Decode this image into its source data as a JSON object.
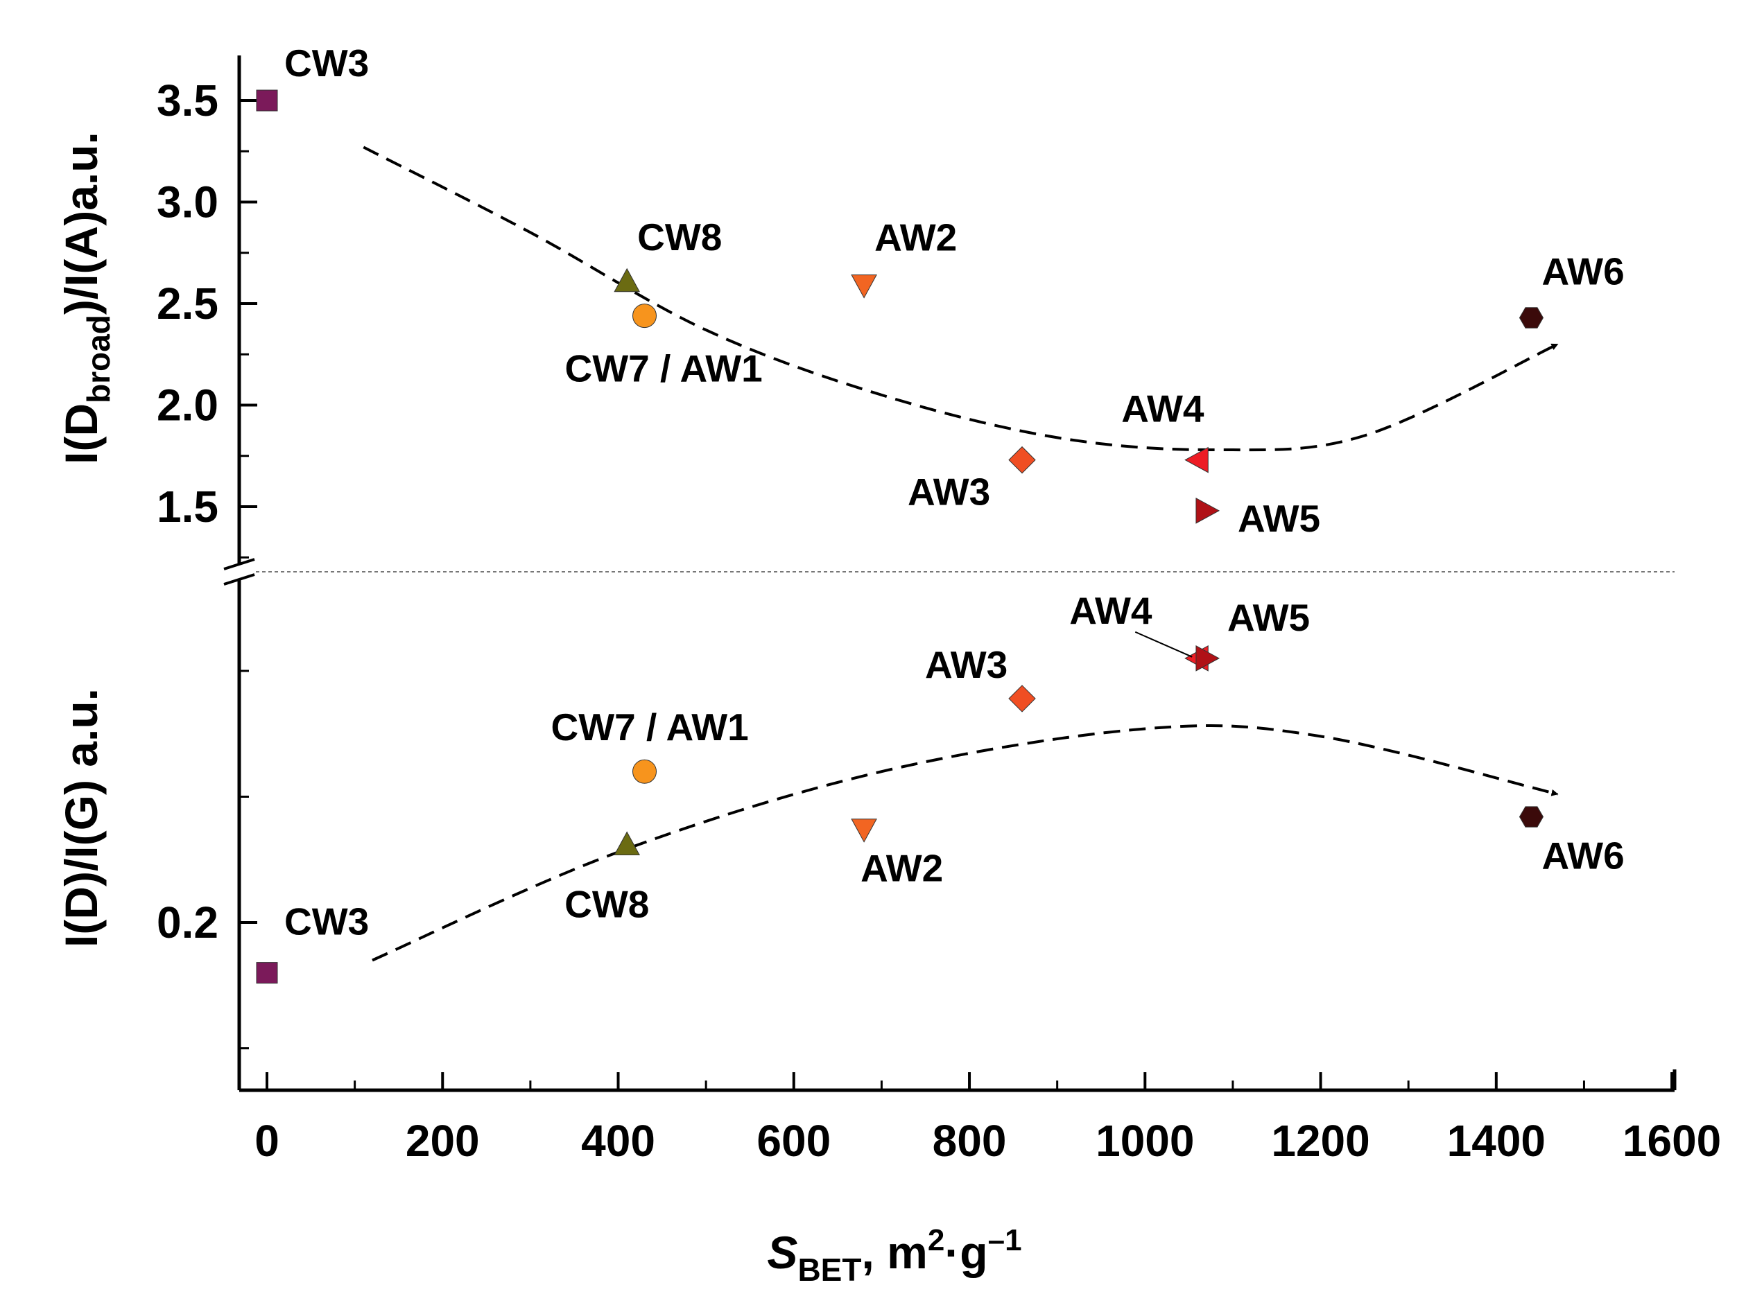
{
  "chart_data": {
    "type": "scatter",
    "xlabel": {
      "main": "S",
      "sub": "BET",
      "unit": ", m",
      "sup1": "2",
      "dot": "·",
      "g": "g",
      "sup2": "–1"
    },
    "x_ticks": [
      "0",
      "200",
      "400",
      "600",
      "800",
      "1000",
      "1200",
      "1400",
      "1600"
    ],
    "xlim": [
      -30,
      1600
    ],
    "upper_panel": {
      "ylabel": {
        "pre": "I(D",
        "sub": "broad",
        "post": ")/I(A)a.u."
      },
      "y_ticks": [
        "1.5",
        "2.0",
        "2.5",
        "3.0",
        "3.5"
      ],
      "ylim": [
        1.2,
        3.72
      ],
      "points": [
        {
          "name": "CW3",
          "x": 0,
          "y": 3.5,
          "marker": "square",
          "color": "#7b1a5a"
        },
        {
          "name": "CW8",
          "x": 410,
          "y": 2.61,
          "marker": "triangle-up",
          "color": "#6b6b12"
        },
        {
          "name": "CW7 / AW1",
          "x": 430,
          "y": 2.44,
          "marker": "circle",
          "color": "#f7941d"
        },
        {
          "name": "AW2",
          "x": 680,
          "y": 2.59,
          "marker": "triangle-down",
          "color": "#f26522"
        },
        {
          "name": "AW3",
          "x": 860,
          "y": 1.73,
          "marker": "diamond",
          "color": "#f04e23"
        },
        {
          "name": "AW4",
          "x": 1060,
          "y": 1.73,
          "marker": "triangle-left",
          "color": "#ed1c24"
        },
        {
          "name": "AW5",
          "x": 1070,
          "y": 1.48,
          "marker": "triangle-right",
          "color": "#b01116"
        },
        {
          "name": "AW6",
          "x": 1440,
          "y": 2.43,
          "marker": "hexagon",
          "color": "#3b0a0a"
        }
      ],
      "trend": [
        [
          110,
          3.27
        ],
        [
          300,
          2.85
        ],
        [
          500,
          2.37
        ],
        [
          700,
          2.05
        ],
        [
          900,
          1.84
        ],
        [
          1080,
          1.78
        ],
        [
          1250,
          1.85
        ],
        [
          1470,
          2.3
        ]
      ]
    },
    "lower_panel": {
      "ylabel": "I(D)/I(G) a.u.",
      "y_ticks": [
        "0.2"
      ],
      "points": [
        {
          "name": "CW3",
          "x": 0,
          "y": 0.18,
          "marker": "square",
          "color": "#7b1a5a"
        },
        {
          "name": "CW8",
          "x": 410,
          "y": 0.231,
          "marker": "triangle-up",
          "color": "#6b6b12"
        },
        {
          "name": "CW7 / AW1",
          "x": 430,
          "y": 0.26,
          "marker": "circle",
          "color": "#f7941d"
        },
        {
          "name": "AW2",
          "x": 680,
          "y": 0.237,
          "marker": "triangle-down",
          "color": "#f26522"
        },
        {
          "name": "AW3",
          "x": 860,
          "y": 0.289,
          "marker": "diamond",
          "color": "#f04e23"
        },
        {
          "name": "AW4",
          "x": 1060,
          "y": 0.305,
          "marker": "triangle-left",
          "color": "#ed1c24"
        },
        {
          "name": "AW5",
          "x": 1070,
          "y": 0.305,
          "marker": "triangle-right",
          "color": "#b01116"
        },
        {
          "name": "AW6",
          "x": 1440,
          "y": 0.242,
          "marker": "hexagon",
          "color": "#3b0a0a"
        }
      ],
      "trend": [
        [
          120,
          0.185
        ],
        [
          400,
          0.228
        ],
        [
          700,
          0.26
        ],
        [
          1000,
          0.277
        ],
        [
          1200,
          0.274
        ],
        [
          1470,
          0.251
        ]
      ]
    }
  }
}
